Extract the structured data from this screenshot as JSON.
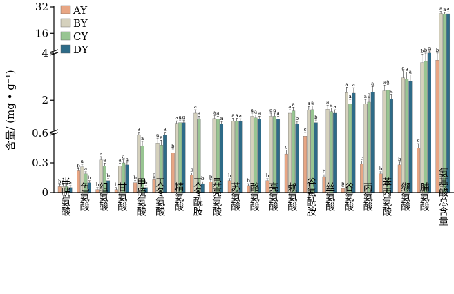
{
  "chart_data": {
    "type": "bar",
    "ylabel": "含量/ (mg • g⁻¹)",
    "y_axis_segments": [
      {
        "range": [
          0,
          0.6
        ],
        "ticks": [
          0,
          0.3,
          0.6
        ]
      },
      {
        "range": [
          0.6,
          4
        ],
        "ticks": [
          2,
          4
        ]
      },
      {
        "range": [
          4,
          32
        ],
        "ticks": [
          16,
          32
        ]
      }
    ],
    "tick_labels": [
      "0",
      "0.3",
      "0.6",
      "2",
      "4",
      "16",
      "32"
    ],
    "legend_position": "top-left",
    "categories": [
      "半胱氨酸",
      "色氨酸",
      "组氨酸",
      "甘氨酸",
      "甲硫氨酸",
      "天冬氨酸",
      "精氨酸",
      "天冬酰胺",
      "异亮氨酸",
      "苏氨酸",
      "酪氨酸",
      "亮氨酸",
      "赖氨酸",
      "谷氨酰胺",
      "丝氨酸",
      "谷氨酸",
      "丙氨酸",
      "苯丙氨酸",
      "缬氨酸",
      "脯氨酸",
      "氨基酸总含量"
    ],
    "series": [
      {
        "name": "AY",
        "color": "#e8a684",
        "values": [
          0.06,
          0.22,
          0.03,
          0.03,
          0.1,
          0.13,
          0.4,
          0.18,
          0.11,
          0.12,
          0.07,
          0.12,
          0.39,
          0.57,
          0.16,
          0.04,
          0.29,
          0.19,
          0.28,
          0.45,
          3.7
        ],
        "labels": [
          "b",
          "b",
          "b",
          "b",
          "b",
          "c",
          "b",
          "b",
          "b",
          "b",
          "b",
          "b",
          "c",
          "c",
          "b",
          "b",
          "c",
          "b",
          "b",
          "c",
          "b"
        ]
      },
      {
        "name": "BY",
        "color": "#d5d1bd",
        "values": [
          0.06,
          0.26,
          0.33,
          0.27,
          0.58,
          0.5,
          1.02,
          1.45,
          1.22,
          1.12,
          1.32,
          1.32,
          1.45,
          1.58,
          1.62,
          2.32,
          1.85,
          2.4,
          2.95,
          3.6,
          28.0
        ],
        "labels": [
          "a",
          "a",
          "a",
          "a",
          "a",
          "a",
          "a",
          "a",
          "a",
          "a",
          "a",
          "a",
          "a",
          "a",
          "a",
          "a",
          "a",
          "a",
          "a",
          "b",
          "a"
        ]
      },
      {
        "name": "CY",
        "color": "#98c592",
        "values": [
          0.06,
          0.19,
          0.27,
          0.3,
          0.47,
          0.48,
          1.05,
          1.2,
          1.2,
          1.12,
          1.25,
          1.32,
          1.55,
          1.6,
          1.52,
          1.85,
          1.92,
          2.42,
          2.9,
          3.65,
          27.5
        ],
        "labels": [
          "b",
          "a",
          "a",
          "a",
          "a",
          "a",
          "a",
          "a",
          "a",
          "a",
          "a",
          "a",
          "a",
          "a",
          "a",
          "a",
          "a",
          "a",
          "a",
          "b",
          "a"
        ]
      },
      {
        "name": "DY",
        "color": "#2e6b88",
        "values": [
          0.05,
          0.1,
          0.12,
          0.28,
          0.05,
          0.58,
          1.05,
          0.09,
          1.0,
          1.1,
          1.2,
          1.2,
          1.0,
          1.05,
          1.45,
          2.3,
          2.35,
          2.05,
          2.8,
          4.1,
          27.8
        ],
        "labels": [
          "a",
          "b",
          "b",
          "a",
          "b",
          "a",
          "a",
          "b",
          "a",
          "a",
          "a",
          "a",
          "b",
          "b",
          "a",
          "a",
          "a",
          "a",
          "a",
          "a",
          "a"
        ]
      }
    ]
  }
}
